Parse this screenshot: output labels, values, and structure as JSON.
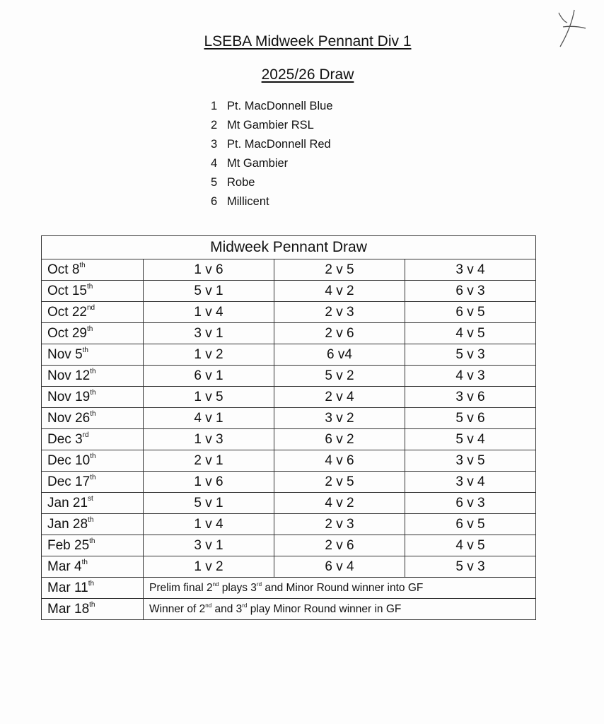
{
  "header": {
    "title": "LSEBA Midweek Pennant Div 1",
    "subtitle": "2025/26 Draw"
  },
  "teams": [
    {
      "num": "1",
      "name": "Pt. MacDonnell Blue"
    },
    {
      "num": "2",
      "name": "Mt Gambier RSL"
    },
    {
      "num": "3",
      "name": "Pt. MacDonnell Red"
    },
    {
      "num": "4",
      "name": "Mt Gambier"
    },
    {
      "num": "5",
      "name": "Robe"
    },
    {
      "num": "6",
      "name": "Millicent"
    }
  ],
  "table": {
    "heading": "Midweek Pennant Draw",
    "rows": [
      {
        "date": "Oct 8",
        "suffix": "th",
        "games": [
          "1 v 6",
          "2 v 5",
          "3 v 4"
        ]
      },
      {
        "date": "Oct 15",
        "suffix": "th",
        "games": [
          "5 v 1",
          "4 v 2",
          "6 v 3"
        ]
      },
      {
        "date": "Oct 22",
        "suffix": "nd",
        "games": [
          "1 v 4",
          "2 v 3",
          "6 v 5"
        ]
      },
      {
        "date": "Oct 29",
        "suffix": "th",
        "games": [
          "3 v 1",
          "2 v 6",
          "4 v 5"
        ]
      },
      {
        "date": "Nov 5",
        "suffix": "th",
        "games": [
          "1 v 2",
          "6 v4",
          "5 v 3"
        ]
      },
      {
        "date": "Nov 12",
        "suffix": "th",
        "games": [
          "6 v 1",
          "5 v 2",
          "4 v 3"
        ]
      },
      {
        "date": "Nov 19",
        "suffix": "th",
        "games": [
          "1 v 5",
          "2 v 4",
          "3 v 6"
        ]
      },
      {
        "date": "Nov 26",
        "suffix": "th",
        "games": [
          "4 v 1",
          "3 v 2",
          "5 v 6"
        ]
      },
      {
        "date": "Dec 3",
        "suffix": "rd",
        "games": [
          "1 v 3",
          "6 v 2",
          "5 v 4"
        ]
      },
      {
        "date": "Dec 10",
        "suffix": "th",
        "games": [
          "2 v 1",
          "4 v 6",
          "3 v 5"
        ]
      },
      {
        "date": "Dec 17",
        "suffix": "th",
        "games": [
          "1 v 6",
          "2 v 5",
          "3 v 4"
        ]
      },
      {
        "date": "Jan 21",
        "suffix": "st",
        "games": [
          "5 v 1",
          "4 v 2",
          "6 v 3"
        ]
      },
      {
        "date": "Jan 28",
        "suffix": "th",
        "games": [
          "1 v 4",
          "2 v 3",
          "6 v 5"
        ]
      },
      {
        "date": "Feb 25",
        "suffix": "th",
        "games": [
          "3 v 1",
          "2 v 6",
          "4 v 5"
        ]
      },
      {
        "date": "Mar 4",
        "suffix": "th",
        "games": [
          "1 v 2",
          "6 v 4",
          "5 v 3"
        ]
      }
    ],
    "finals": [
      {
        "date": "Mar 11",
        "suffix": "th",
        "parts": [
          "Prelim final 2",
          "nd",
          " plays 3",
          "rd",
          " and Minor Round winner into GF"
        ]
      },
      {
        "date": "Mar 18",
        "suffix": "th",
        "parts": [
          "Winner of 2",
          "nd",
          " and 3",
          "rd",
          " play Minor Round winner in GF"
        ]
      }
    ]
  },
  "colors": {
    "ink": "#111111",
    "paper": "#fdfdfd",
    "pen": "#555555"
  }
}
